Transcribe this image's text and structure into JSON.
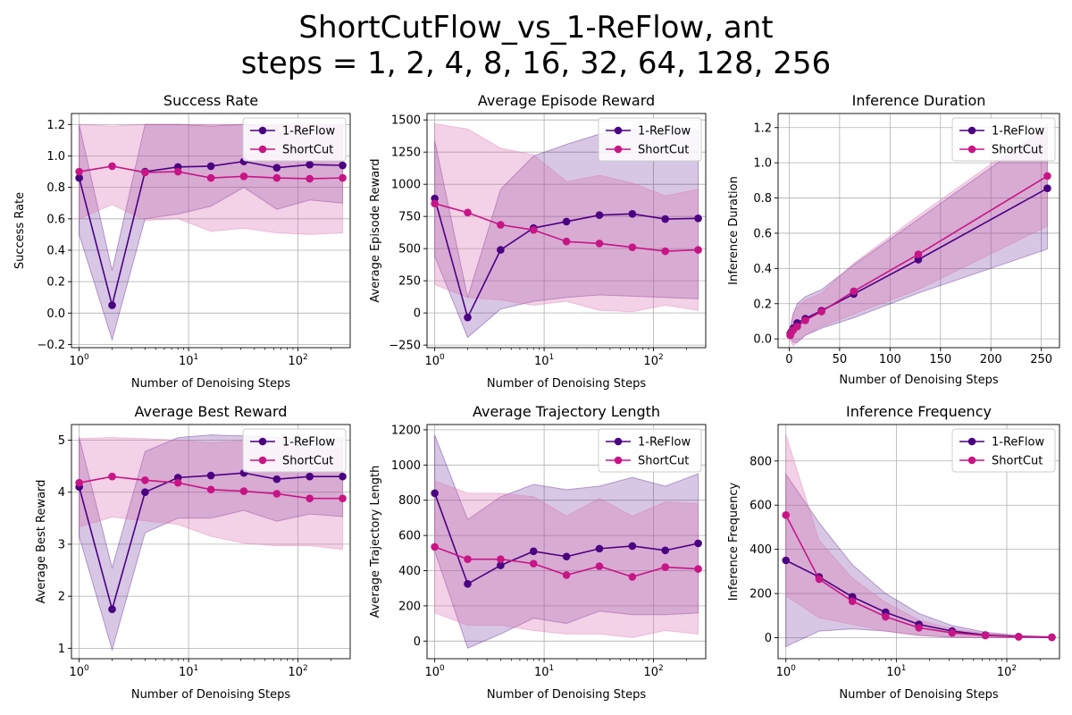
{
  "figure": {
    "title_line1": "ShortCutFlow_vs_1-ReFlow, ant",
    "title_line2": "steps = 1, 2, 4, 8, 16, 32, 64, 128, 256"
  },
  "colors": {
    "reflow": "#4b0082",
    "shortcut": "#c71585",
    "reflow_band": "#4b0082",
    "shortcut_band": "#db70b0",
    "grid": "#b0b0b0"
  },
  "chart_data": [
    {
      "type": "line",
      "title": "Success Rate",
      "xlabel": "Number of Denoising Steps",
      "ylabel": "Success Rate",
      "xscale": "log",
      "xlim": [
        0.85,
        300
      ],
      "ylim": [
        -0.22,
        1.27
      ],
      "yticks": [
        -0.2,
        0.0,
        0.2,
        0.4,
        0.6,
        0.8,
        1.0,
        1.2
      ],
      "ytick_labels": [
        "−0.2",
        "0.0",
        "0.2",
        "0.4",
        "0.6",
        "0.8",
        "1.0",
        "1.2"
      ],
      "grid": true,
      "legend": "upper right",
      "x": [
        1,
        2,
        4,
        8,
        16,
        32,
        64,
        128,
        256
      ],
      "series": [
        {
          "name": "1-ReFlow",
          "values": [
            0.86,
            0.05,
            0.9,
            0.93,
            0.935,
            0.965,
            0.925,
            0.945,
            0.94
          ],
          "lower": [
            0.5,
            -0.17,
            0.6,
            0.63,
            0.68,
            0.8,
            0.66,
            0.72,
            0.7
          ],
          "upper": [
            1.2,
            0.27,
            1.2,
            1.2,
            1.19,
            1.2,
            1.19,
            1.19,
            1.19
          ]
        },
        {
          "name": "ShortCut",
          "values": [
            0.9,
            0.935,
            0.895,
            0.9,
            0.86,
            0.87,
            0.86,
            0.855,
            0.86
          ],
          "lower": [
            0.6,
            0.69,
            0.59,
            0.6,
            0.52,
            0.54,
            0.51,
            0.5,
            0.51
          ],
          "upper": [
            1.2,
            1.19,
            1.2,
            1.2,
            1.2,
            1.2,
            1.2,
            1.2,
            1.2
          ]
        }
      ]
    },
    {
      "type": "line",
      "title": "Average Episode Reward",
      "xlabel": "Number of Denoising Steps",
      "ylabel": "Average Episode Reward",
      "xscale": "log",
      "xlim": [
        0.85,
        300
      ],
      "ylim": [
        -270,
        1550
      ],
      "yticks": [
        -250,
        0,
        250,
        500,
        750,
        1000,
        1250,
        1500
      ],
      "ytick_labels": [
        "−250",
        "0",
        "250",
        "500",
        "750",
        "1000",
        "1250",
        "1500"
      ],
      "grid": true,
      "legend": "upper right",
      "x": [
        1,
        2,
        4,
        8,
        16,
        32,
        64,
        128,
        256
      ],
      "series": [
        {
          "name": "1-ReFlow",
          "values": [
            890,
            -35,
            490,
            660,
            710,
            760,
            770,
            730,
            735
          ],
          "lower": [
            440,
            -190,
            30,
            90,
            120,
            140,
            130,
            120,
            110
          ],
          "upper": [
            1340,
            120,
            960,
            1220,
            1310,
            1390,
            1430,
            1400,
            1420
          ]
        },
        {
          "name": "ShortCut",
          "values": [
            850,
            780,
            685,
            645,
            555,
            540,
            510,
            480,
            490
          ],
          "lower": [
            220,
            120,
            100,
            60,
            90,
            20,
            10,
            60,
            20
          ],
          "upper": [
            1470,
            1430,
            1280,
            1230,
            1020,
            1070,
            1010,
            910,
            960
          ]
        }
      ]
    },
    {
      "type": "line",
      "title": "Inference Duration",
      "xlabel": "Number of Denoising Steps",
      "ylabel": "Inference Duration",
      "xscale": "linear",
      "xlim": [
        -11,
        268
      ],
      "ylim": [
        -0.05,
        1.28
      ],
      "xticks": [
        0,
        50,
        100,
        150,
        200,
        250
      ],
      "yticks": [
        0.0,
        0.2,
        0.4,
        0.6,
        0.8,
        1.0,
        1.2
      ],
      "ytick_labels": [
        "0.0",
        "0.2",
        "0.4",
        "0.6",
        "0.8",
        "1.0",
        "1.2"
      ],
      "grid": true,
      "legend": "upper right",
      "x": [
        1,
        2,
        4,
        8,
        16,
        32,
        64,
        128,
        256
      ],
      "series": [
        {
          "name": "1-ReFlow",
          "values": [
            0.03,
            0.04,
            0.06,
            0.09,
            0.115,
            0.16,
            0.255,
            0.45,
            0.855
          ],
          "lower": [
            0.0,
            0.0,
            -0.02,
            -0.02,
            0.02,
            0.06,
            0.12,
            0.26,
            0.51
          ],
          "upper": [
            0.06,
            0.08,
            0.14,
            0.2,
            0.24,
            0.28,
            0.42,
            0.68,
            1.2
          ]
        },
        {
          "name": "ShortCut",
          "values": [
            0.02,
            0.035,
            0.05,
            0.07,
            0.105,
            0.155,
            0.27,
            0.48,
            0.925
          ],
          "lower": [
            -0.01,
            -0.02,
            -0.04,
            -0.02,
            0.02,
            0.07,
            0.14,
            0.28,
            0.64
          ],
          "upper": [
            0.07,
            0.1,
            0.15,
            0.18,
            0.22,
            0.26,
            0.43,
            0.7,
            1.22
          ]
        }
      ]
    },
    {
      "type": "line",
      "title": "Average Best Reward",
      "xlabel": "Number of Denoising Steps",
      "ylabel": "Average Best Reward",
      "xscale": "log",
      "xlim": [
        0.85,
        300
      ],
      "ylim": [
        0.8,
        5.3
      ],
      "yticks": [
        1,
        2,
        3,
        4,
        5
      ],
      "ytick_labels": [
        "1",
        "2",
        "3",
        "4",
        "5"
      ],
      "grid": true,
      "legend": "upper right",
      "x": [
        1,
        2,
        4,
        8,
        16,
        32,
        64,
        128,
        256
      ],
      "series": [
        {
          "name": "1-ReFlow",
          "values": [
            4.1,
            1.75,
            4.0,
            4.28,
            4.32,
            4.37,
            4.25,
            4.3,
            4.3
          ],
          "lower": [
            3.15,
            0.97,
            3.22,
            3.5,
            3.5,
            3.65,
            3.44,
            3.58,
            3.53
          ],
          "upper": [
            5.05,
            2.55,
            4.78,
            5.05,
            5.1,
            5.08,
            5.05,
            5.02,
            5.05
          ]
        },
        {
          "name": "ShortCut",
          "values": [
            4.18,
            4.3,
            4.23,
            4.18,
            4.05,
            4.02,
            3.97,
            3.88,
            3.88
          ],
          "lower": [
            3.33,
            3.52,
            3.45,
            3.38,
            3.15,
            3.02,
            2.97,
            2.97,
            2.9
          ],
          "upper": [
            5.03,
            5.05,
            5.03,
            5.0,
            4.95,
            4.99,
            4.96,
            4.8,
            4.85
          ]
        }
      ]
    },
    {
      "type": "line",
      "title": "Average Trajectory Length",
      "xlabel": "Number of Denoising Steps",
      "ylabel": "Average Trajectory Length",
      "xscale": "log",
      "xlim": [
        0.85,
        300
      ],
      "ylim": [
        -100,
        1230
      ],
      "yticks": [
        0,
        200,
        400,
        600,
        800,
        1000,
        1200
      ],
      "ytick_labels": [
        "0",
        "200",
        "400",
        "600",
        "800",
        "1000",
        "1200"
      ],
      "grid": true,
      "legend": "upper right",
      "x": [
        1,
        2,
        4,
        8,
        16,
        32,
        64,
        128,
        256
      ],
      "series": [
        {
          "name": "1-ReFlow",
          "values": [
            840,
            325,
            430,
            510,
            480,
            525,
            540,
            515,
            555
          ],
          "lower": [
            510,
            -40,
            40,
            130,
            100,
            170,
            150,
            150,
            160
          ],
          "upper": [
            1170,
            690,
            820,
            890,
            860,
            880,
            930,
            880,
            950
          ]
        },
        {
          "name": "ShortCut",
          "values": [
            535,
            465,
            465,
            440,
            375,
            425,
            365,
            420,
            410
          ],
          "lower": [
            160,
            90,
            90,
            60,
            40,
            40,
            20,
            60,
            40
          ],
          "upper": [
            910,
            840,
            840,
            820,
            710,
            810,
            710,
            790,
            780
          ]
        }
      ]
    },
    {
      "type": "line",
      "title": "Inference Frequency",
      "xlabel": "Number of Denoising Steps",
      "ylabel": "Inference Frequency",
      "xscale": "log",
      "xlim": [
        0.85,
        300
      ],
      "ylim": [
        -95,
        965
      ],
      "yticks": [
        0,
        200,
        400,
        600,
        800
      ],
      "ytick_labels": [
        "0",
        "200",
        "400",
        "600",
        "800"
      ],
      "grid": true,
      "legend": "upper right",
      "x": [
        1,
        2,
        4,
        8,
        16,
        32,
        64,
        128,
        256
      ],
      "series": [
        {
          "name": "1-ReFlow",
          "values": [
            350,
            275,
            185,
            115,
            60,
            30,
            12,
            5,
            2
          ],
          "lower": [
            -40,
            30,
            40,
            30,
            10,
            2,
            0,
            0,
            0
          ],
          "upper": [
            740,
            520,
            330,
            200,
            110,
            55,
            25,
            10,
            5
          ]
        },
        {
          "name": "ShortCut",
          "values": [
            555,
            265,
            165,
            95,
            45,
            22,
            10,
            4,
            2
          ],
          "lower": [
            190,
            90,
            60,
            30,
            10,
            2,
            0,
            0,
            0
          ],
          "upper": [
            920,
            440,
            270,
            160,
            80,
            40,
            20,
            8,
            4
          ]
        }
      ]
    }
  ]
}
